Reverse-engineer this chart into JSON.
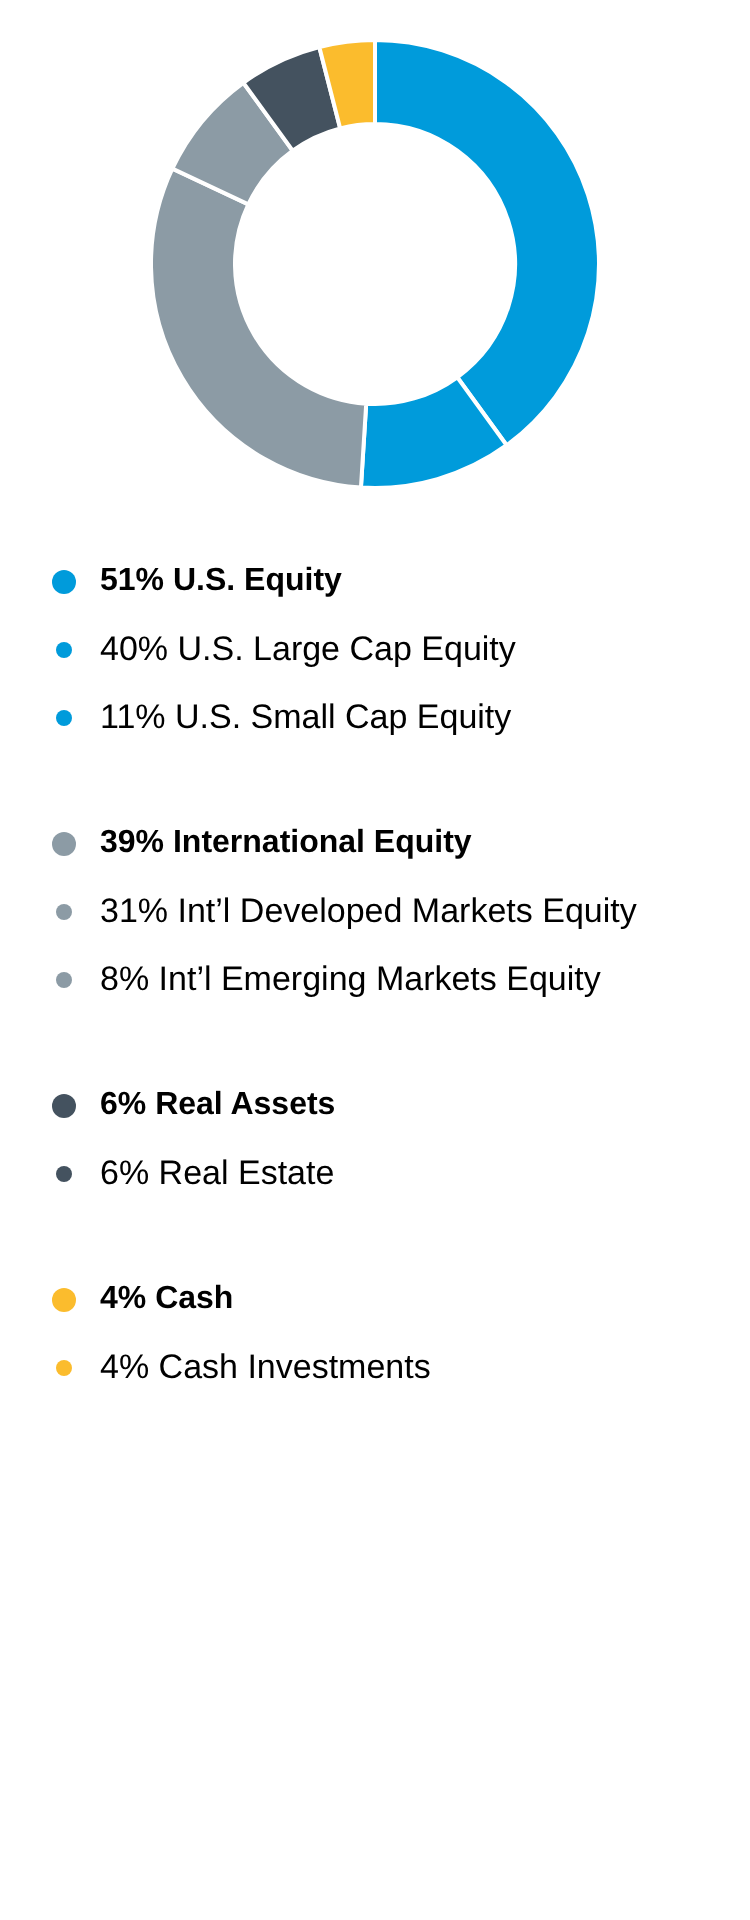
{
  "chart_data": {
    "type": "donut",
    "categories": [
      "40% U.S. Large Cap Equity",
      "11% U.S. Small Cap Equity",
      "31% Int’l Developed Markets Equity",
      "8% Int’l Emerging Markets Equity",
      "6% Real Estate",
      "4% Cash Investments"
    ],
    "values": [
      40,
      11,
      31,
      8,
      6,
      4
    ],
    "colors": [
      "#009bdb",
      "#009bdb",
      "#8c9ba5",
      "#8c9ba5",
      "#44525f",
      "#fbbc2d"
    ],
    "legend": "bottom",
    "annotations": [
      "51% U.S. Equity",
      "39% International Equity",
      "6% Real Assets",
      "4% Cash"
    ]
  }
}
